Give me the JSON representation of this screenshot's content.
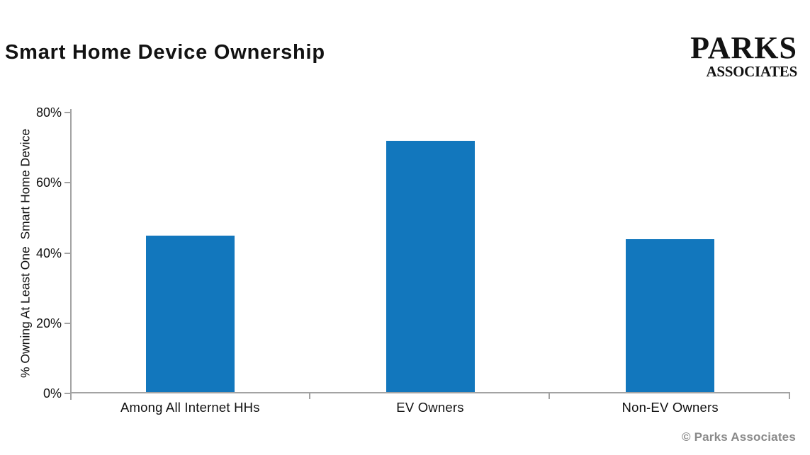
{
  "header": {
    "title": "Smart Home Device Ownership"
  },
  "logo": {
    "line1": "PARKS",
    "line2": "ASSOCIATES"
  },
  "footer": {
    "copyright": "© Parks Associates"
  },
  "chart_data": {
    "type": "bar",
    "title": "Smart Home Device Ownership",
    "categories": [
      "Among All Internet HHs",
      "EV Owners",
      "Non-EV Owners"
    ],
    "values": [
      45,
      72,
      44
    ],
    "xlabel": "",
    "ylabel": "% Owning At Least One  Smart Home Device",
    "ylim": [
      0,
      80
    ],
    "yticks": [
      0,
      20,
      40,
      60,
      80
    ],
    "ytick_suffix": "%",
    "grid": false,
    "legend": false,
    "bar_color": "#1277bd",
    "axis_color": "#a3a3a3"
  }
}
